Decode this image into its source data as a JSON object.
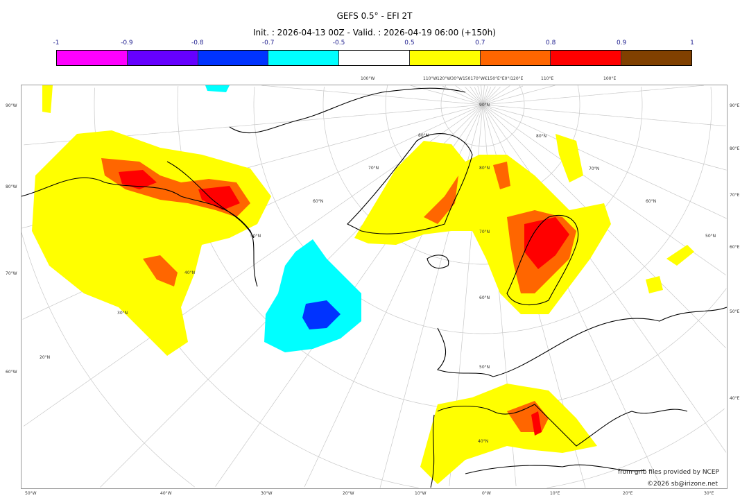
{
  "title": "GEFS 0.5° - EFI 2T",
  "subtitle": "Init. : 2026-04-13 00Z - Valid. : 2026-04-19 06:00 (+150h)",
  "colorbar": {
    "ticks": [
      "-1",
      "-0.9",
      "-0.8",
      "-0.7",
      "-0.5",
      "0.5",
      "0.7",
      "0.8",
      "0.9",
      "1"
    ],
    "colors": [
      "#ff00ff",
      "#6600ff",
      "#0033ff",
      "#00ffff",
      "#ffffff",
      "#ffff00",
      "#ff6600",
      "#ff0000",
      "#804000"
    ]
  },
  "axes": {
    "left": [
      "90°W",
      "80°W",
      "70°W",
      "60°W"
    ],
    "right": [
      "90°E",
      "80°E",
      "70°E",
      "60°E",
      "50°E",
      "40°E"
    ],
    "bottom": [
      "50°W",
      "40°W",
      "30°W",
      "20°W",
      "10°W",
      "0°W",
      "10°E",
      "20°E",
      "30°E"
    ],
    "top": [
      "100°W",
      "110°W",
      "120°W30°W150170°W€150°E°E0°I120°E",
      "110°E",
      "100°E"
    ],
    "lat": [
      "90°N",
      "80°N",
      "70°N",
      "60°N",
      "50°N",
      "40°N",
      "30°N",
      "20°N",
      "80°N",
      "70°N",
      "60°N",
      "50°N",
      "40°N",
      "80°N",
      "70°N",
      "60°N",
      "50°N"
    ]
  },
  "credits": {
    "source": "from grib files provided by NCEP",
    "copyright": "©2026 sb@irizone.net"
  }
}
